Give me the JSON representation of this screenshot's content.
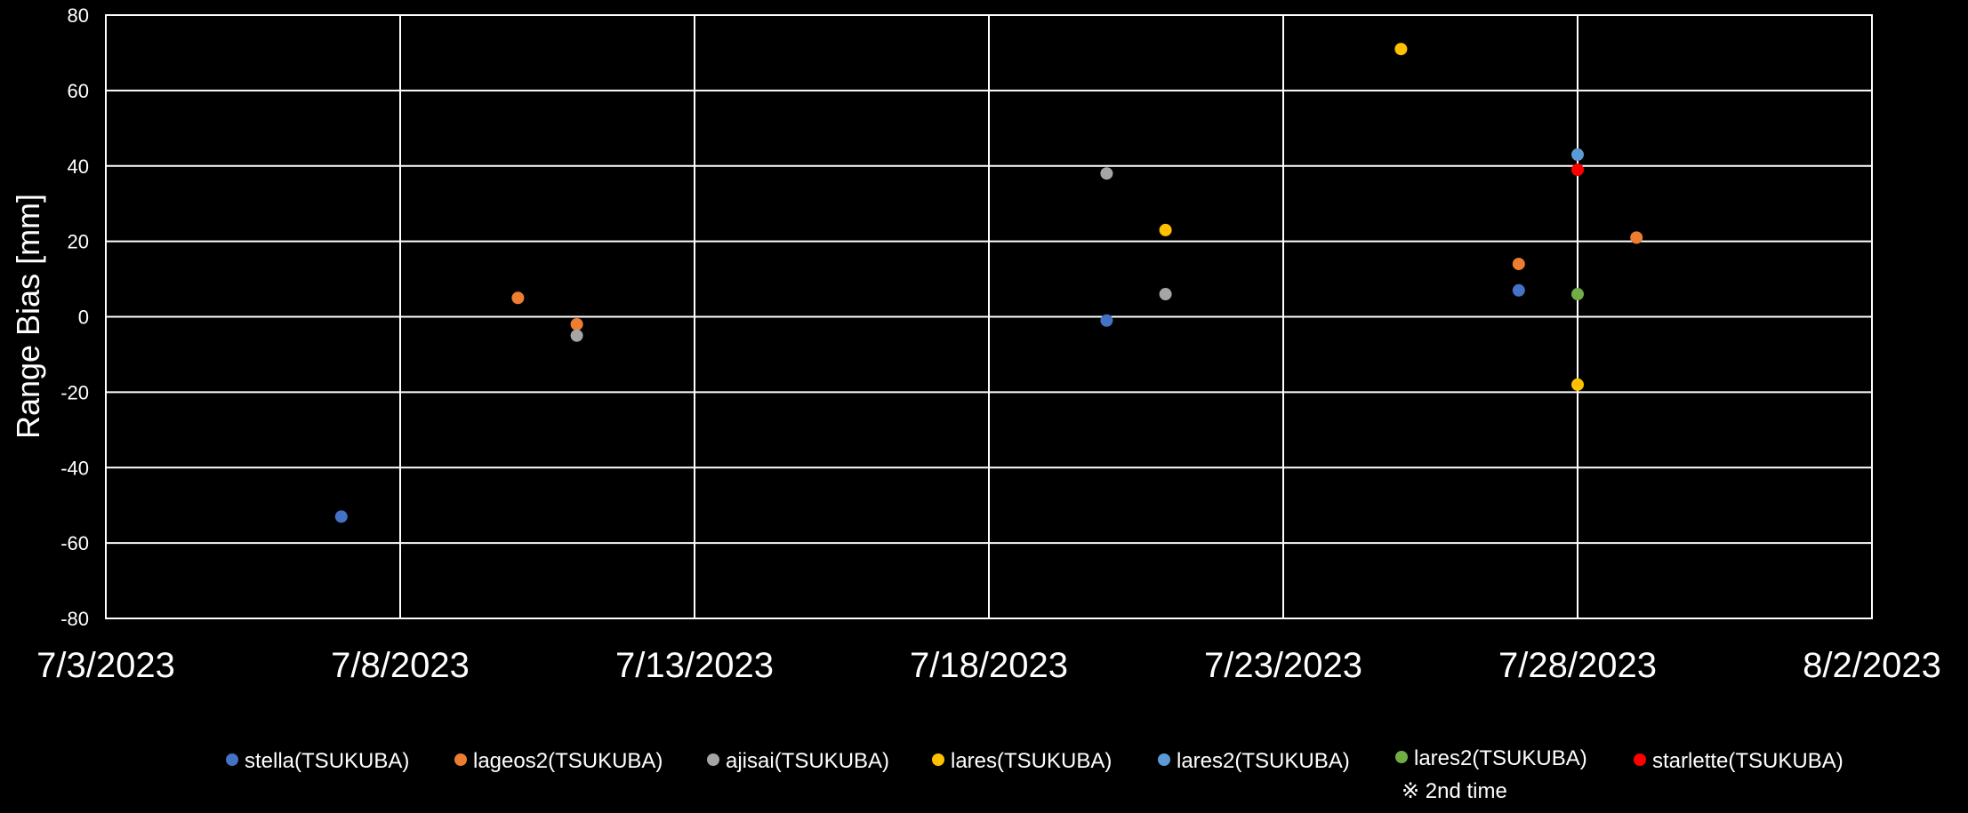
{
  "chart_data": {
    "type": "scatter",
    "title": "",
    "xlabel": "",
    "ylabel": "Range Bias [mm]",
    "x_axis_type": "date",
    "xlim": [
      "7/3/2023",
      "8/2/2023"
    ],
    "ylim": [
      -80,
      80
    ],
    "y_ticks": [
      80,
      60,
      40,
      20,
      0,
      -20,
      -40,
      -60,
      -80
    ],
    "x_tick_labels": [
      "7/3/2023",
      "7/8/2023",
      "7/13/2023",
      "7/18/2023",
      "7/23/2023",
      "7/28/2023",
      "8/2/2023"
    ],
    "grid": true,
    "legend_position": "bottom",
    "series": [
      {
        "name": "stella(TSUKUBA)",
        "color": "#4472C4",
        "points": [
          {
            "x": "7/7/2023",
            "y": -53
          },
          {
            "x": "7/20/2023",
            "y": -1
          },
          {
            "x": "7/27/2023",
            "y": 7
          }
        ]
      },
      {
        "name": "lageos2(TSUKUBA)",
        "color": "#ED7D31",
        "points": [
          {
            "x": "7/10/2023",
            "y": 5
          },
          {
            "x": "7/11/2023",
            "y": -2
          },
          {
            "x": "7/27/2023",
            "y": 14
          },
          {
            "x": "7/29/2023",
            "y": 21
          }
        ]
      },
      {
        "name": "ajisai(TSUKUBA)",
        "color": "#A5A5A5",
        "points": [
          {
            "x": "7/11/2023",
            "y": -5
          },
          {
            "x": "7/20/2023",
            "y": 38
          },
          {
            "x": "7/21/2023",
            "y": 6
          }
        ]
      },
      {
        "name": "lares(TSUKUBA)",
        "color": "#FFC000",
        "points": [
          {
            "x": "7/21/2023",
            "y": 23
          },
          {
            "x": "7/25/2023",
            "y": 71
          },
          {
            "x": "7/28/2023",
            "y": -18
          }
        ]
      },
      {
        "name": "lares2(TSUKUBA)",
        "color": "#5B9BD5",
        "points": [
          {
            "x": "7/28/2023",
            "y": 43
          }
        ]
      },
      {
        "name": "lares2(TSUKUBA)",
        "note": "※ 2nd time",
        "color": "#70AD47",
        "points": [
          {
            "x": "7/28/2023",
            "y": 6
          }
        ]
      },
      {
        "name": "starlette(TSUKUBA)",
        "color": "#FF0000",
        "points": [
          {
            "x": "7/28/2023",
            "y": 39
          }
        ]
      }
    ]
  }
}
